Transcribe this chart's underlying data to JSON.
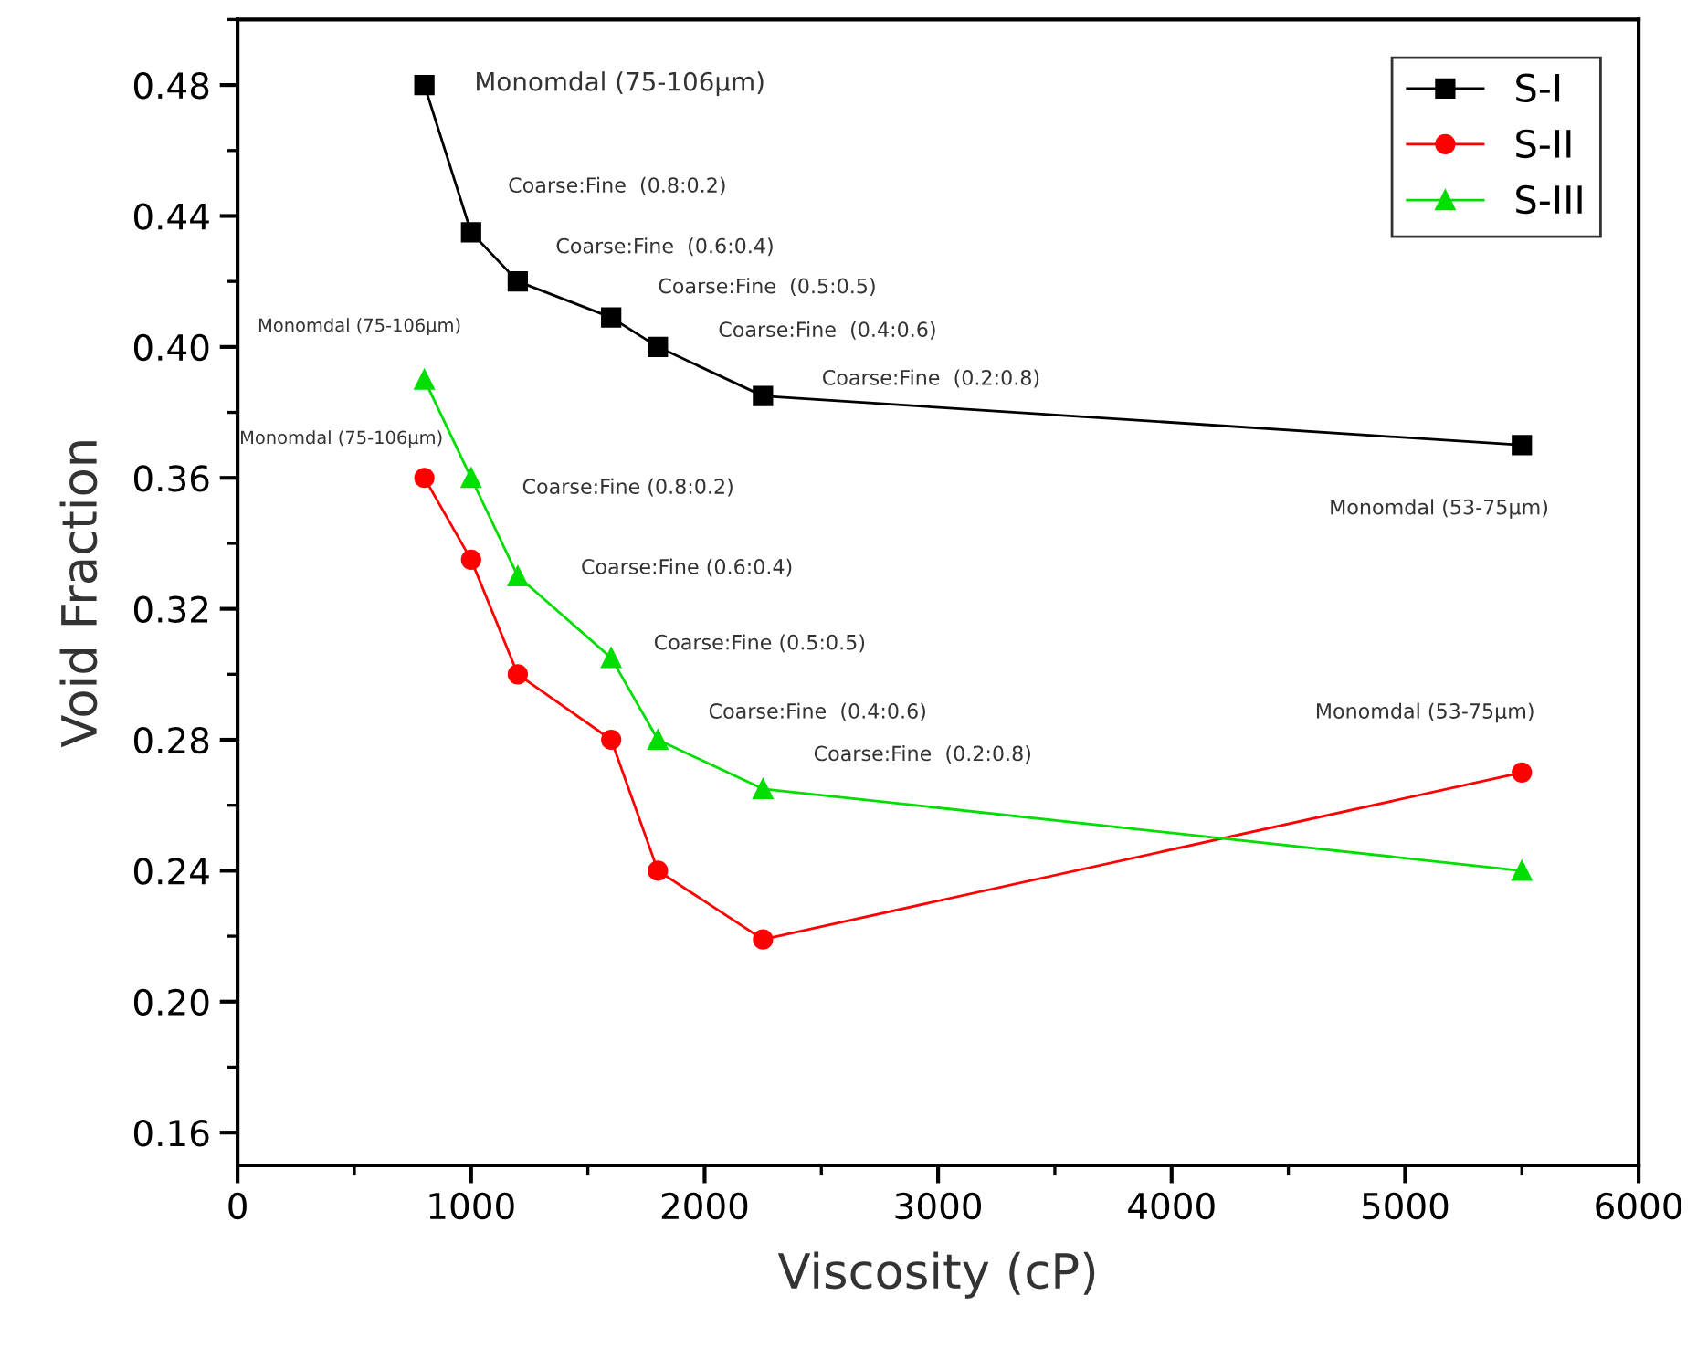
{
  "chart_data": {
    "type": "line",
    "xlabel": "Viscosity (cP)",
    "ylabel": "Void Fraction",
    "x": [
      800,
      1000,
      1200,
      1600,
      1800,
      2250,
      5500
    ],
    "series": [
      {
        "name": "S-I",
        "color": "#000000",
        "marker": "square",
        "values": [
          0.48,
          0.435,
          0.42,
          0.409,
          0.4,
          0.385,
          0.37
        ]
      },
      {
        "name": "S-II",
        "color": "#ff0000",
        "marker": "circle",
        "values": [
          0.36,
          0.335,
          0.3,
          0.28,
          0.24,
          0.219,
          0.27
        ]
      },
      {
        "name": "S-III",
        "color": "#00dd00",
        "marker": "triangle",
        "values": [
          0.39,
          0.36,
          0.33,
          0.305,
          0.28,
          0.265,
          0.24
        ]
      }
    ],
    "xlim": [
      0,
      6000
    ],
    "xticks": [
      0,
      1000,
      2000,
      3000,
      4000,
      5000,
      6000
    ],
    "ylim": [
      0.15,
      0.5
    ],
    "yticks": [
      {
        "value": 0.16,
        "label": "0.16"
      },
      {
        "value": 0.2,
        "label": "0.20"
      },
      {
        "value": 0.24,
        "label": "0.24"
      },
      {
        "value": 0.28,
        "label": "0.28"
      },
      {
        "value": 0.32,
        "label": "0.32"
      },
      {
        "value": 0.36,
        "label": "0.36"
      },
      {
        "value": 0.4,
        "label": "0.40"
      },
      {
        "value": 0.44,
        "label": "0.44"
      },
      {
        "value": 0.48,
        "label": "0.48"
      }
    ],
    "grid": false,
    "legend": "top right",
    "line_style": "solid",
    "annotations": [
      "Monomdal (75-106μm)",
      "Coarse:Fine  (0.8:0.2)",
      "Coarse:Fine  (0.6:0.4)",
      "Coarse:Fine  (0.5:0.5)",
      "Coarse:Fine  (0.4:0.6)",
      "Coarse:Fine  (0.2:0.8)",
      "Monomdal (53-75μm)",
      "Monomdal (75-106μm)",
      "Coarse:Fine (0.8:0.2)",
      "Coarse:Fine (0.6:0.4)",
      "Coarse:Fine (0.5:0.5)",
      "Coarse:Fine  (0.4:0.6)",
      "Coarse:Fine  (0.2:0.8)",
      "Monomdal (75-106μm)",
      "Monomdal (53-75μm)"
    ]
  }
}
